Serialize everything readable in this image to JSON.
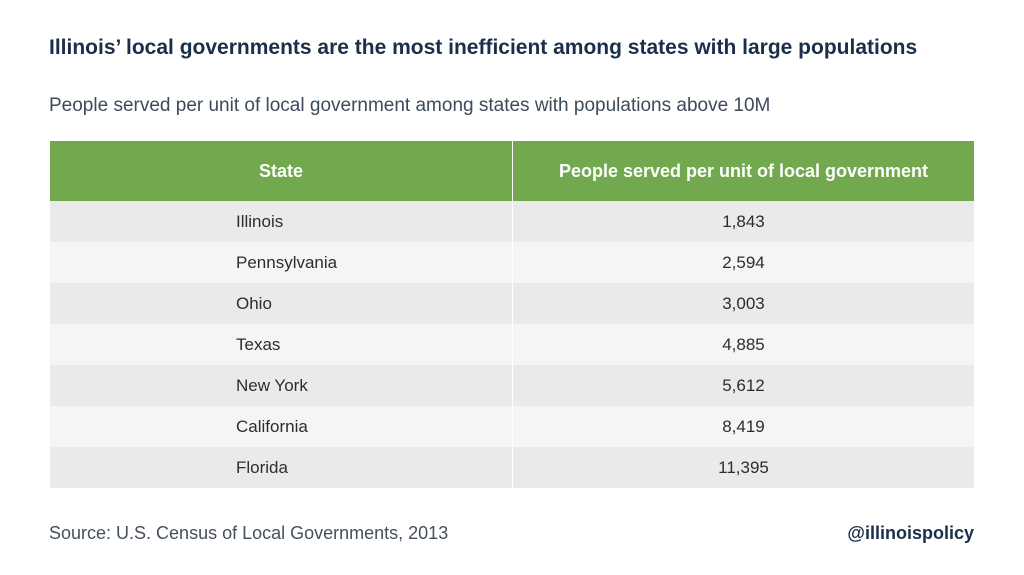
{
  "title": "Illinois’ local governments are the most inefficient among states with large populations",
  "subtitle": "People served per unit of local government among states with populations above 10M",
  "source": "Source: U.S. Census of Local Governments, 2013",
  "handle": "@illinoispolicy",
  "colors": {
    "header_bg": "#72a84e",
    "row_odd": "#eaeaeb",
    "row_even": "#f6f5f3"
  },
  "chart_data": {
    "type": "table",
    "columns": [
      "State",
      "People served per unit of local government"
    ],
    "rows": [
      {
        "state": "Illinois",
        "value": "1,843"
      },
      {
        "state": "Pennsylvania",
        "value": "2,594"
      },
      {
        "state": "Ohio",
        "value": "3,003"
      },
      {
        "state": "Texas",
        "value": "4,885"
      },
      {
        "state": "New York",
        "value": "5,612"
      },
      {
        "state": "California",
        "value": "8,419"
      },
      {
        "state": "Florida",
        "value": "11,395"
      }
    ]
  }
}
